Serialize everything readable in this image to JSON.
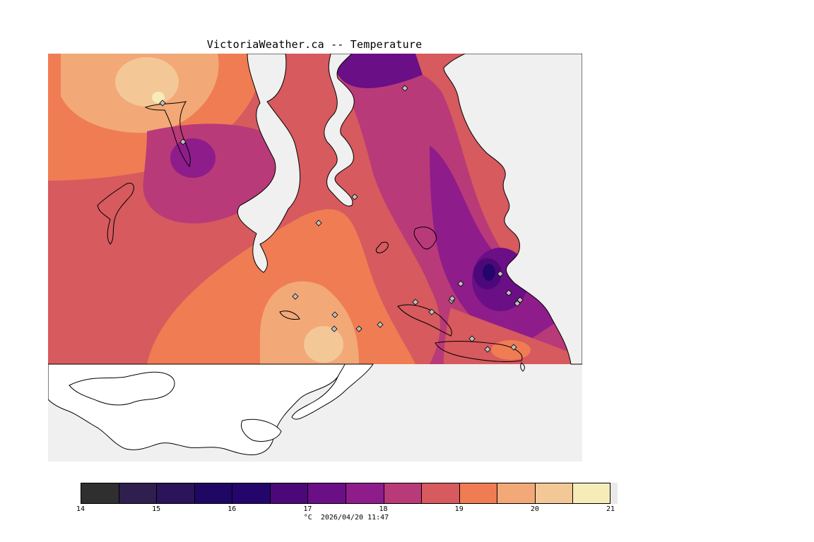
{
  "title": "VictoriaWeather.ca -- Temperature",
  "colorbar": {
    "min": 14,
    "max": 21,
    "step": 0.5,
    "colors": [
      "#2f2f2f",
      "#2e1f4e",
      "#2b145a",
      "#1f0864",
      "#24056c",
      "#4c0878",
      "#6a0f86",
      "#8e1d8b",
      "#b93a78",
      "#d65a5e",
      "#f07c53",
      "#f2a877",
      "#f4c797",
      "#f6ecb8"
    ],
    "tick_labels": [
      "14",
      "15",
      "16",
      "17",
      "18",
      "19",
      "20",
      "21"
    ]
  },
  "footer": {
    "units": "°C",
    "timestamp": "2026/04/20 11:47"
  },
  "map": {
    "land_color": "#ffffff",
    "water_color": "#f0f0f0",
    "station_marker_color": "#c0c0c0",
    "station_count": 22
  }
}
